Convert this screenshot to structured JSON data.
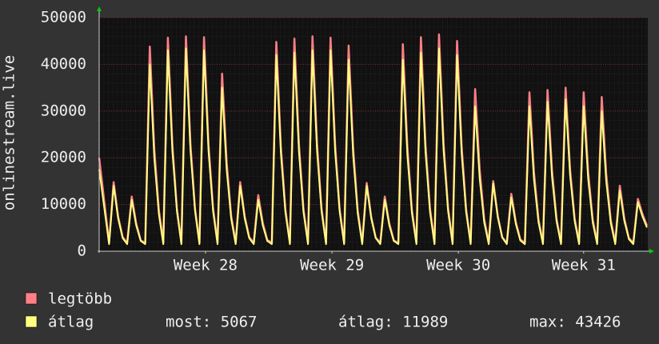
{
  "chart_data": {
    "type": "line",
    "y_label": "onlinestream.live",
    "xlim": [
      0,
      30.35
    ],
    "ylim": [
      0,
      50000
    ],
    "yticks": [
      0,
      10000,
      20000,
      30000,
      40000,
      50000
    ],
    "xticks": [
      {
        "value": 5.88,
        "label": "Week 28"
      },
      {
        "value": 12.88,
        "label": "Week 29"
      },
      {
        "value": 19.87,
        "label": "Week 30"
      },
      {
        "value": 26.8,
        "label": "Week 31"
      }
    ],
    "grid": true,
    "x": [
      0,
      0.55,
      0.8,
      1.05,
      1.3,
      1.55,
      1.8,
      2.05,
      2.3,
      2.55,
      2.8,
      3.05,
      3.3,
      3.55,
      3.8,
      4.05,
      4.3,
      4.55,
      4.8,
      5.05,
      5.3,
      5.55,
      5.8,
      6.05,
      6.3,
      6.55,
      6.8,
      7.05,
      7.3,
      7.55,
      7.8,
      8.05,
      8.3,
      8.55,
      8.8,
      9.05,
      9.3,
      9.55,
      9.8,
      10.05,
      10.3,
      10.55,
      10.8,
      11.05,
      11.3,
      11.55,
      11.8,
      12.05,
      12.3,
      12.55,
      12.8,
      13.05,
      13.3,
      13.55,
      13.8,
      14.05,
      14.3,
      14.55,
      14.8,
      15.05,
      15.3,
      15.55,
      15.8,
      16.05,
      16.3,
      16.55,
      16.8,
      17.05,
      17.3,
      17.55,
      17.8,
      18.05,
      18.3,
      18.55,
      18.8,
      19.05,
      19.3,
      19.55,
      19.8,
      20.05,
      20.3,
      20.55,
      20.8,
      21.05,
      21.3,
      21.55,
      21.8,
      22.05,
      22.3,
      22.55,
      22.8,
      23.05,
      23.3,
      23.55,
      23.8,
      24.05,
      24.3,
      24.55,
      24.8,
      25.05,
      25.3,
      25.55,
      25.8,
      26.05,
      26.3,
      26.55,
      26.8,
      27.05,
      27.3,
      27.55,
      27.8,
      28.05,
      28.3,
      28.55,
      28.8,
      29.05,
      29.3,
      29.55,
      29.8,
      30.05,
      30.3
    ],
    "series": [
      {
        "name": "legtöbb",
        "color": "#ff7f86",
        "values": [
          20000,
          1800,
          14800,
          7400,
          3000,
          1800,
          11700,
          5900,
          2300,
          1800,
          43800,
          21900,
          8800,
          1800,
          45700,
          22900,
          9100,
          1800,
          46000,
          23000,
          9200,
          1800,
          45800,
          22900,
          9200,
          1800,
          38000,
          19000,
          7600,
          1800,
          14800,
          7400,
          3000,
          1800,
          12000,
          6000,
          2400,
          1800,
          44800,
          22400,
          9000,
          1800,
          45500,
          22800,
          9100,
          1800,
          46000,
          23000,
          9200,
          1800,
          45700,
          22900,
          9100,
          1800,
          44000,
          22000,
          8800,
          1800,
          14600,
          7300,
          2900,
          1800,
          11700,
          5900,
          2300,
          1800,
          44300,
          22200,
          8900,
          1800,
          45800,
          22900,
          9200,
          1800,
          46400,
          23200,
          9300,
          1800,
          45000,
          22500,
          9000,
          1800,
          34700,
          17400,
          6900,
          1800,
          15000,
          7500,
          3000,
          1800,
          12300,
          6200,
          2500,
          1800,
          34000,
          17000,
          6800,
          1800,
          34500,
          17300,
          6900,
          1800,
          35000,
          17500,
          7000,
          1800,
          34000,
          17000,
          6800,
          1800,
          33000,
          16500,
          6600,
          1800,
          14000,
          7000,
          2800,
          1800,
          11200,
          8000,
          5500
        ]
      },
      {
        "name": "átlag",
        "color": "#ffff80",
        "values": [
          17500,
          1500,
          14000,
          7000,
          2800,
          1500,
          11000,
          5500,
          2200,
          1500,
          40000,
          20000,
          8000,
          1500,
          43000,
          21500,
          8600,
          1500,
          43400,
          21700,
          8700,
          1500,
          43000,
          21500,
          8600,
          1500,
          35000,
          17500,
          7000,
          1500,
          14000,
          7000,
          2800,
          1500,
          11000,
          5500,
          2200,
          1500,
          42000,
          21000,
          8400,
          1500,
          42500,
          21300,
          8500,
          1500,
          43000,
          21500,
          8600,
          1500,
          43000,
          21500,
          8600,
          1500,
          41000,
          20500,
          8200,
          1500,
          14000,
          7000,
          2800,
          1500,
          11000,
          5500,
          2200,
          1500,
          41000,
          20500,
          8200,
          1500,
          42500,
          21300,
          8500,
          1500,
          43400,
          21700,
          8700,
          1500,
          42000,
          21000,
          8400,
          1500,
          31000,
          15500,
          6200,
          1500,
          14500,
          7300,
          2900,
          1500,
          11500,
          5800,
          2300,
          1500,
          31000,
          15500,
          6200,
          1500,
          32000,
          16000,
          6400,
          1500,
          32500,
          16300,
          6500,
          1500,
          31000,
          15500,
          6200,
          1500,
          30000,
          15000,
          6000,
          1500,
          13000,
          6500,
          2600,
          1500,
          10500,
          7500,
          5067
        ]
      }
    ],
    "stats": [
      {
        "label": "most:",
        "value": 5067
      },
      {
        "label": "átlag:",
        "value": 11989
      },
      {
        "label": "max:",
        "value": 43426
      }
    ]
  }
}
